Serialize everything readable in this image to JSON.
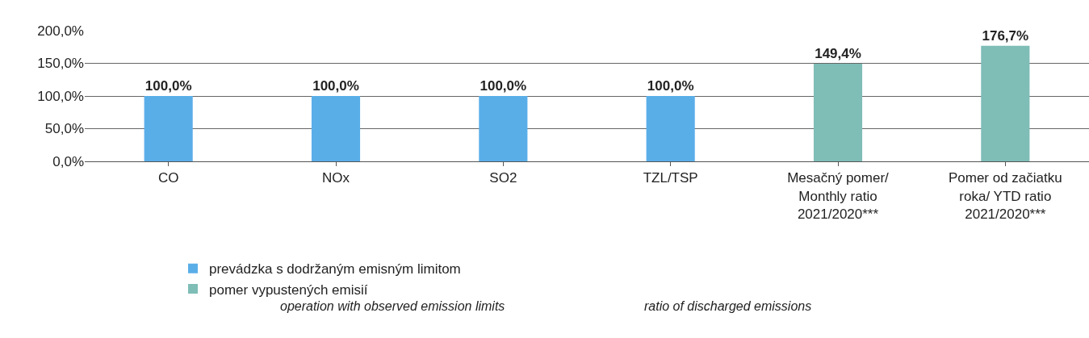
{
  "chart_data": {
    "type": "bar",
    "categories": [
      "CO",
      "NOx",
      "SO2",
      "TZL/TSP",
      "Mesačný pomer/\nMonthly ratio\n2021/2020***",
      "Pomer od začiatku\nroka/ YTD ratio\n2021/2020***"
    ],
    "series": [
      {
        "name": "prevádzka s dodržaným emisným limitom",
        "color": "#5aaee8",
        "values": [
          100,
          100,
          100,
          100,
          null,
          null
        ],
        "value_labels": [
          "100,0%",
          "100,0%",
          "100,0%",
          "100,0%",
          null,
          null
        ]
      },
      {
        "name": "pomer vypustených emisií",
        "color": "#7fbdb7",
        "values": [
          null,
          null,
          null,
          null,
          149.4,
          176.7
        ],
        "value_labels": [
          null,
          null,
          null,
          null,
          "149,4%",
          "176,7%"
        ]
      }
    ],
    "ylim": [
      0,
      200
    ],
    "yticks": [
      {
        "value": 0,
        "label": "0,0%"
      },
      {
        "value": 50,
        "label": "50,0%"
      },
      {
        "value": 100,
        "label": "100,0%"
      },
      {
        "value": 150,
        "label": "150,0%"
      },
      {
        "value": 200,
        "label": "200,0%"
      }
    ],
    "grid": "y",
    "legend": "bottom",
    "annotations": [
      "operation with observed emission limits",
      "ratio of discharged emissions"
    ]
  }
}
